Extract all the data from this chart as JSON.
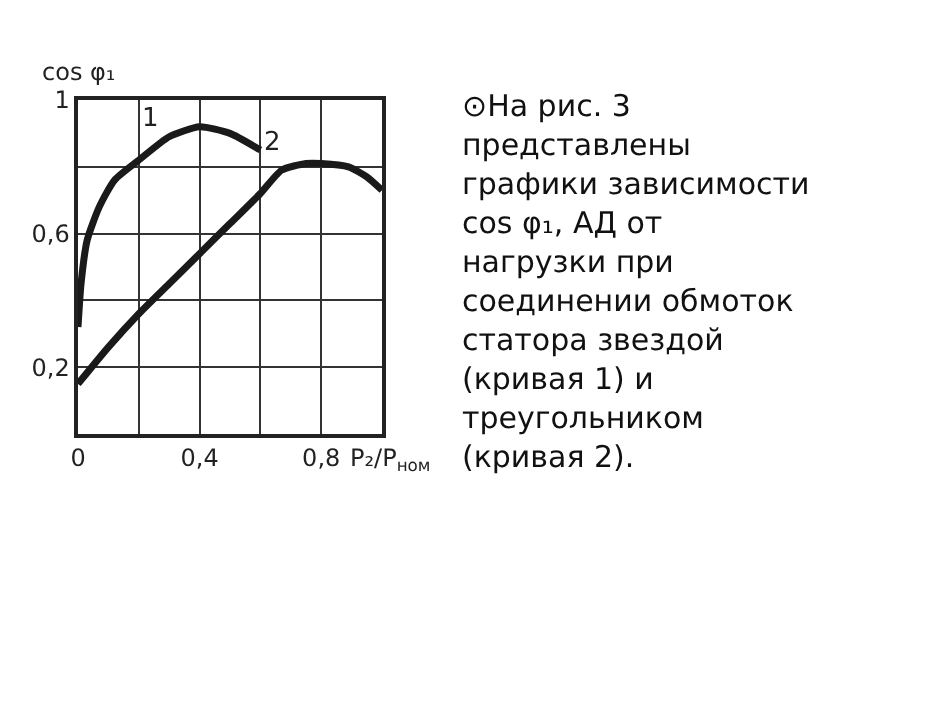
{
  "chart_data": {
    "type": "line",
    "xlabel": "P₂/P$_{ном}$",
    "ylabel": "cos φ₁",
    "series": [
      {
        "color": "#1a1a1a",
        "x": [
          0,
          0.01,
          0.03,
          0.07,
          0.12,
          0.2,
          0.3,
          0.4,
          0.5,
          0.6
        ],
        "values": [
          0.32,
          0.45,
          0.58,
          0.68,
          0.76,
          0.82,
          0.89,
          0.92,
          0.9,
          0.85
        ]
      },
      {
        "color": "#1a1a1a",
        "x": [
          0,
          0.1,
          0.2,
          0.3,
          0.4,
          0.5,
          0.6,
          0.67,
          0.75,
          0.8,
          0.89,
          0.95,
          1.0
        ],
        "values": [
          0.15,
          0.26,
          0.36,
          0.45,
          0.54,
          0.63,
          0.72,
          0.79,
          0.81,
          0.81,
          0.8,
          0.77,
          0.73
        ]
      }
    ],
    "xlim": [
      0,
      1
    ],
    "ylim": [
      0,
      1
    ],
    "xticks": [
      {
        "value": 0,
        "label": "0"
      },
      {
        "value": 0.2,
        "label": null
      },
      {
        "value": 0.4,
        "label": "0,4"
      },
      {
        "value": 0.6,
        "label": null
      },
      {
        "value": 0.8,
        "label": "0,8"
      },
      {
        "value": 1,
        "label": null
      }
    ],
    "yticks": [
      {
        "value": 0,
        "label": null
      },
      {
        "value": 0.2,
        "label": "0,2"
      },
      {
        "value": 0.4,
        "label": null
      },
      {
        "value": 0.6,
        "label": "0,6"
      },
      {
        "value": 0.8,
        "label": null
      },
      {
        "value": 1,
        "label": "1"
      }
    ],
    "grid": true,
    "marker": "none",
    "line_style": "solid",
    "annotations": [
      "1",
      "2",
      "⊙На рис. 3 представлены графики зависимости cos φ₁, АД от нагрузки при соединении обмоток статора звездой (кривая 1) и треугольником (кривая 2)."
    ]
  }
}
